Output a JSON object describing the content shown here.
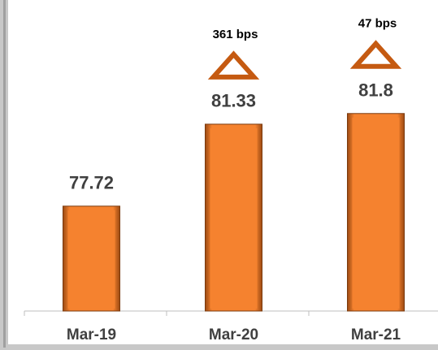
{
  "chart_data": {
    "type": "bar",
    "categories": [
      "Mar-19",
      "Mar-20",
      "Mar-21"
    ],
    "values": [
      77.72,
      81.33,
      81.8
    ],
    "annotations": [
      null,
      "361 bps",
      "47 bps"
    ],
    "color": "#f5822f",
    "ylim": [
      73.1,
      86.8
    ]
  }
}
